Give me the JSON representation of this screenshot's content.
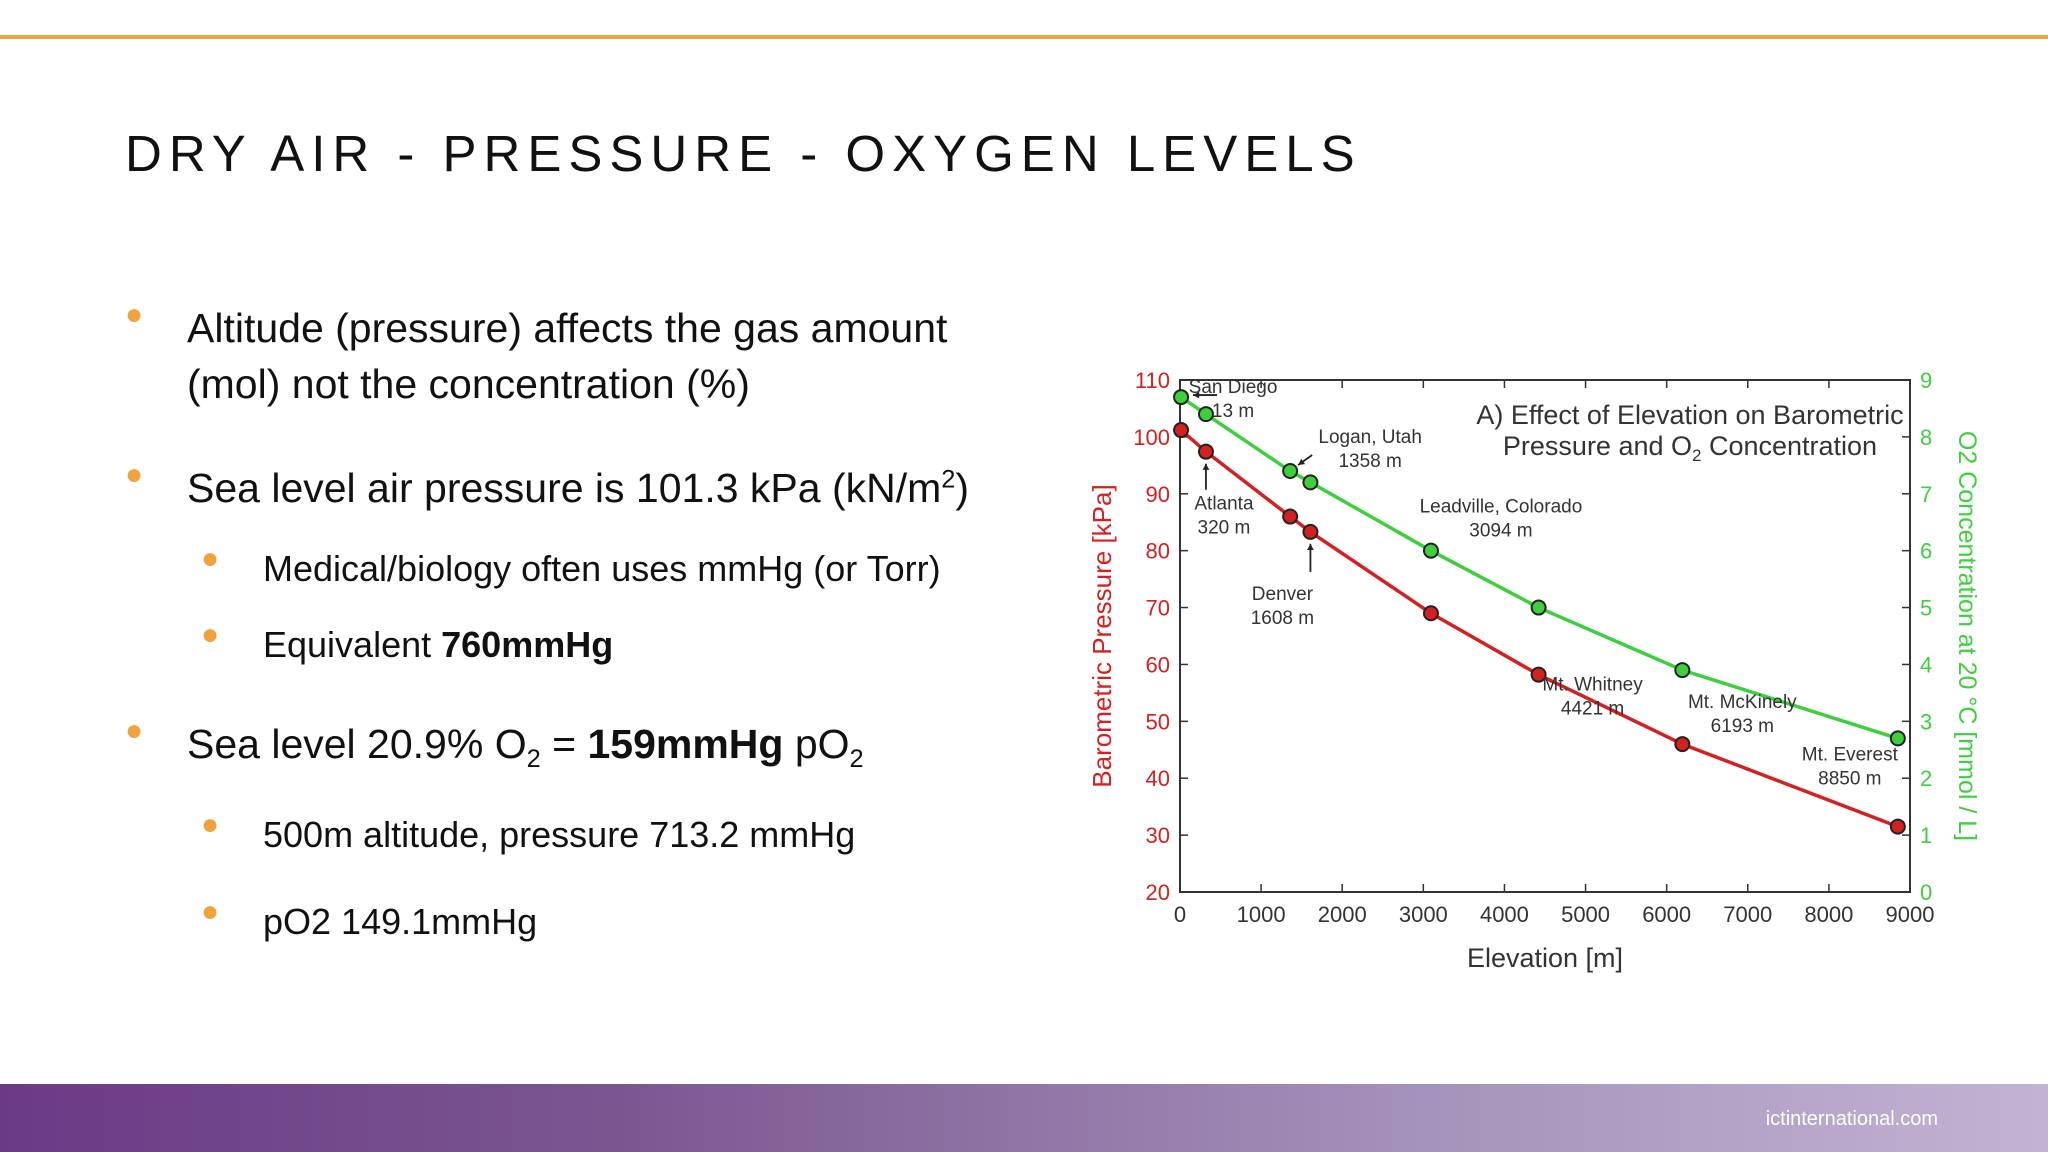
{
  "slide": {
    "title": "DRY AIR - PRESSURE - OXYGEN LEVELS",
    "footer_url": "ictinternational.com",
    "accent_color": "#f0a23c",
    "footer_colors": [
      "#6b3a87",
      "#c4b2d4"
    ]
  },
  "bullets": {
    "b1_line1": "Altitude (pressure) affects the gas amount",
    "b1_line2": "(mol) not the concentration (%)",
    "b2_pre": "Sea level air pressure is 101.3 kPa (kN/m",
    "b2_sup": "2",
    "b2_post": ")",
    "s1": "Medical/biology often uses mmHg (or Torr)",
    "s2_pre": "Equivalent ",
    "s2_bold": "760mmHg",
    "b3_pre": "Sea level 20.9% O",
    "b3_sub": "2",
    "b3_mid": " = ",
    "b3_bold": "159mmHg",
    "b3_post": " pO",
    "b3_sub2": "2",
    "s3": "500m altitude, pressure 713.2 mmHg",
    "s4": "pO2 149.1mmHg"
  },
  "chart_data": {
    "type": "line",
    "title_line1": "A) Effect of Elevation on Barometric",
    "title_line2_pre": "Pressure and O",
    "title_line2_sub": "2",
    "title_line2_post": " Concentration",
    "xlabel": "Elevation [m]",
    "ylabel": "Barometric Pressure [kPa]",
    "y2label": "O2 Concentration at 20 °C [mmol / L]",
    "xlim": [
      0,
      9000
    ],
    "ylim": [
      20,
      110
    ],
    "y2lim": [
      0,
      9
    ],
    "x_ticks": [
      "0",
      "1000",
      "2000",
      "3000",
      "4000",
      "5000",
      "6000",
      "7000",
      "8000",
      "9000"
    ],
    "y_ticks": [
      "20",
      "30",
      "40",
      "50",
      "60",
      "70",
      "80",
      "90",
      "100",
      "110"
    ],
    "y2_ticks": [
      "0",
      "1",
      "2",
      "3",
      "4",
      "5",
      "6",
      "7",
      "8",
      "9"
    ],
    "series": [
      {
        "name": "Barometric Pressure",
        "axis": "left",
        "color": "#d42020",
        "x": [
          13,
          320,
          1358,
          1608,
          3094,
          4421,
          6193,
          8850
        ],
        "values": [
          101.2,
          97.4,
          86.0,
          83.3,
          69.0,
          58.2,
          46.0,
          31.5
        ]
      },
      {
        "name": "O2 Concentration",
        "axis": "right",
        "color": "#3ecf3e",
        "x": [
          13,
          320,
          1358,
          1608,
          3094,
          4421,
          6193,
          8850
        ],
        "values": [
          8.7,
          8.4,
          7.4,
          7.2,
          6.0,
          5.0,
          3.9,
          2.7
        ]
      }
    ],
    "annotations": [
      {
        "line1": "San Diego",
        "line2": "13 m"
      },
      {
        "line1": "Atlanta",
        "line2": "320 m"
      },
      {
        "line1": "Logan, Utah",
        "line2": "1358 m"
      },
      {
        "line1": "Denver",
        "line2": "1608 m"
      },
      {
        "line1": "Leadville, Colorado",
        "line2": "3094 m"
      },
      {
        "line1": "Mt. Whitney",
        "line2": "4421 m"
      },
      {
        "line1": "Mt. McKinely",
        "line2": "6193 m"
      },
      {
        "line1": "Mt. Everest",
        "line2": "8850 m"
      }
    ]
  }
}
